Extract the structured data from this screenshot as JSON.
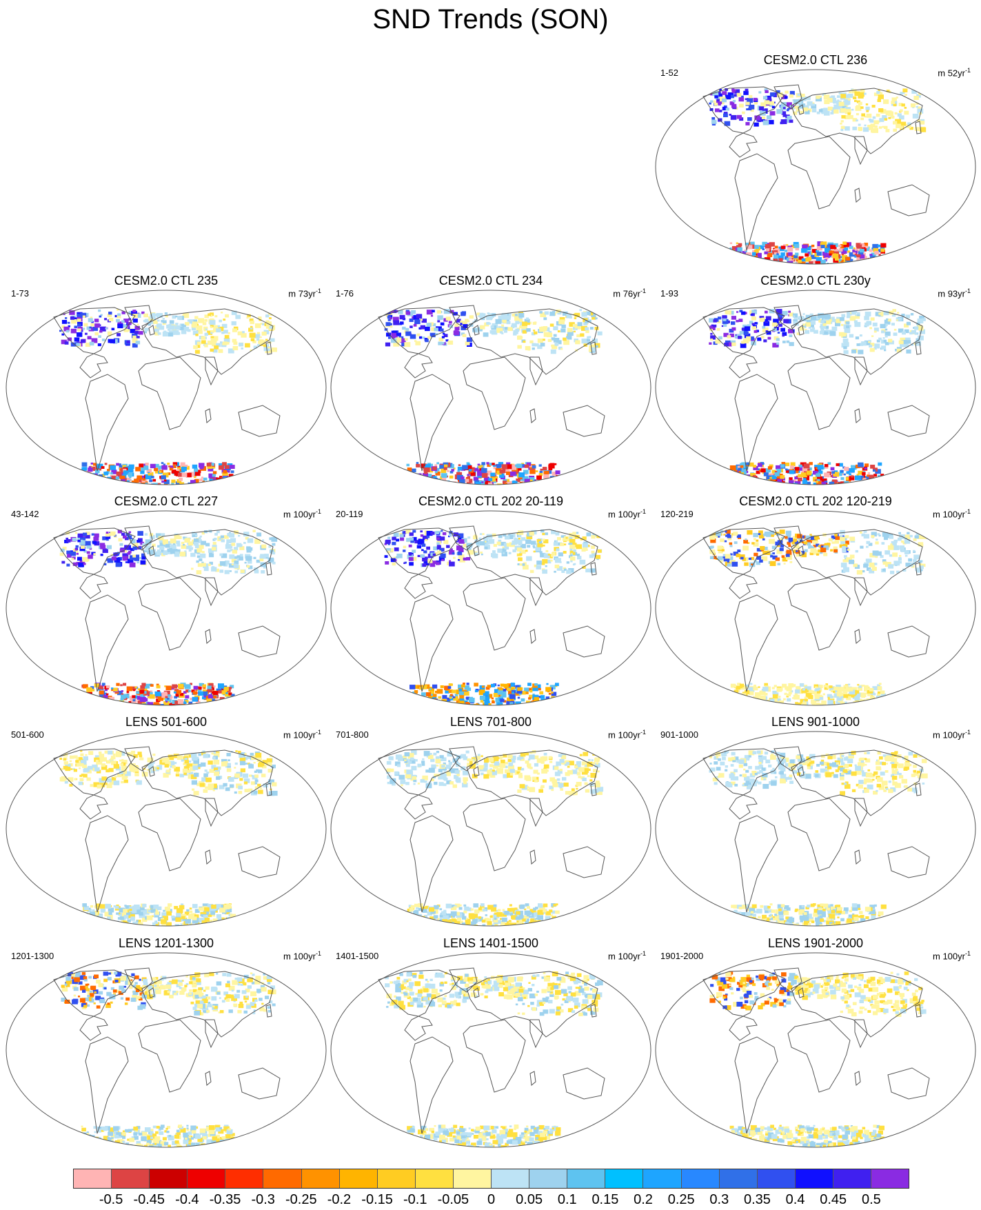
{
  "title": "SND Trends (SON)",
  "panels": [
    {
      "id": "p1",
      "title": "CESM2.0 CTL 236",
      "left": "1-52",
      "right_prefix": "m 52yr",
      "right_exp": "-1",
      "row": 0,
      "col": 2,
      "north": {
        "amer": "strong-pos",
        "euro": "light-pos",
        "asia": "light-neg"
      },
      "south": "strong-neg"
    },
    {
      "id": "p2",
      "title": "CESM2.0 CTL 235",
      "left": "1-73",
      "right_prefix": "m 73yr",
      "right_exp": "-1",
      "row": 1,
      "col": 0,
      "north": {
        "amer": "strong-pos",
        "euro": "light-pos",
        "asia": "light-neg"
      },
      "south": "strong-neg"
    },
    {
      "id": "p3",
      "title": "CESM2.0 CTL 234",
      "left": "1-76",
      "right_prefix": "m 76yr",
      "right_exp": "-1",
      "row": 1,
      "col": 1,
      "north": {
        "amer": "strong-pos",
        "euro": "light-pos",
        "asia": "light-mixed"
      },
      "south": "strong-neg"
    },
    {
      "id": "p4",
      "title": "CESM2.0 CTL 230y",
      "left": "1-93",
      "right_prefix": "m 93yr",
      "right_exp": "-1",
      "row": 1,
      "col": 2,
      "north": {
        "amer": "strong-pos",
        "euro": "light-pos",
        "asia": "light-pos"
      },
      "south": "strong-neg"
    },
    {
      "id": "p5",
      "title": "CESM2.0 CTL 227",
      "left": "43-142",
      "right_prefix": "m 100yr",
      "right_exp": "-1",
      "row": 2,
      "col": 0,
      "north": {
        "amer": "strong-pos",
        "euro": "light-pos",
        "asia": "light-pos"
      },
      "south": "strong-neg"
    },
    {
      "id": "p6",
      "title": "CESM2.0 CTL 202 20-119",
      "left": "20-119",
      "right_prefix": "m 100yr",
      "right_exp": "-1",
      "row": 2,
      "col": 1,
      "north": {
        "amer": "strong-pos",
        "euro": "light-pos",
        "asia": "light-mixed"
      },
      "south": "med-neg"
    },
    {
      "id": "p7",
      "title": "CESM2.0 CTL 202 120-219",
      "left": "120-219",
      "right_prefix": "m 100yr",
      "right_exp": "-1",
      "row": 2,
      "col": 2,
      "north": {
        "amer": "mixed",
        "euro": "mixed",
        "asia": "light-pos"
      },
      "south": "light-neg"
    },
    {
      "id": "p8",
      "title": "LENS 501-600",
      "left": "501-600",
      "right_prefix": "m 100yr",
      "right_exp": "-1",
      "row": 3,
      "col": 0,
      "north": {
        "amer": "light-neg",
        "euro": "light-neg",
        "asia": "light-mixed"
      },
      "south": "light-mixed"
    },
    {
      "id": "p9",
      "title": "LENS 701-800",
      "left": "701-800",
      "right_prefix": "m 100yr",
      "right_exp": "-1",
      "row": 3,
      "col": 1,
      "north": {
        "amer": "light-pos",
        "euro": "light-neg",
        "asia": "light-neg"
      },
      "south": "light-mixed"
    },
    {
      "id": "p10",
      "title": "LENS 901-1000",
      "left": "901-1000",
      "right_prefix": "m 100yr",
      "right_exp": "-1",
      "row": 3,
      "col": 2,
      "north": {
        "amer": "light-pos",
        "euro": "light-mixed",
        "asia": "light-neg"
      },
      "south": "light-mixed"
    },
    {
      "id": "p11",
      "title": "LENS 1201-1300",
      "left": "1201-1300",
      "right_prefix": "m 100yr",
      "right_exp": "-1",
      "row": 4,
      "col": 0,
      "north": {
        "amer": "mixed",
        "euro": "light-neg",
        "asia": "light-mixed"
      },
      "south": "light-mixed"
    },
    {
      "id": "p12",
      "title": "LENS 1401-1500",
      "left": "1401-1500",
      "right_prefix": "m 100yr",
      "right_exp": "-1",
      "row": 4,
      "col": 1,
      "north": {
        "amer": "light-mixed",
        "euro": "light-neg",
        "asia": "light-mixed"
      },
      "south": "light-mixed"
    },
    {
      "id": "p13",
      "title": "LENS 1901-2000",
      "left": "1901-2000",
      "right_prefix": "m 100yr",
      "right_exp": "-1",
      "row": 4,
      "col": 2,
      "north": {
        "amer": "mixed",
        "euro": "light-neg",
        "asia": "light-neg"
      },
      "south": "light-mixed"
    }
  ],
  "colorbar": {
    "colors": [
      "#ffb4b4",
      "#dd4444",
      "#cc0000",
      "#ee0000",
      "#ff2e00",
      "#ff6a00",
      "#ff9200",
      "#ffb400",
      "#ffcc22",
      "#ffe040",
      "#fff5a0",
      "#bde3f5",
      "#9ed2ee",
      "#5ec3f0",
      "#00c0ff",
      "#1ea5ff",
      "#2888ff",
      "#3070e8",
      "#3050f0",
      "#1010ff",
      "#4020f0",
      "#8a2be2"
    ],
    "labels": [
      "-0.5",
      "-0.45",
      "-0.4",
      "-0.35",
      "-0.3",
      "-0.25",
      "-0.2",
      "-0.15",
      "-0.1",
      "-0.05",
      "0",
      "0.05",
      "0.1",
      "0.15",
      "0.2",
      "0.25",
      "0.3",
      "0.35",
      "0.4",
      "0.45",
      "0.5"
    ]
  }
}
